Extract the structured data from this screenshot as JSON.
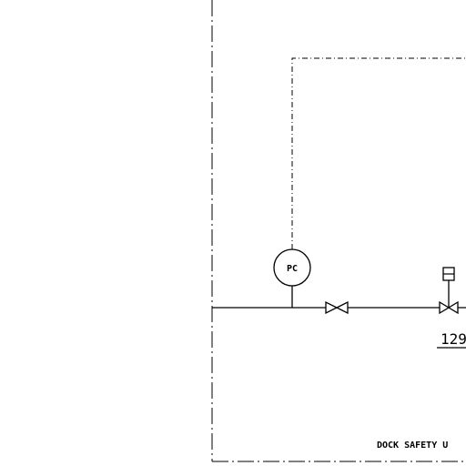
{
  "diagram": {
    "line_color": "#000000",
    "background_color": "#ffffff",
    "pressure_controller": {
      "label": "PC",
      "icon": "pressure-controller-bubble-icon"
    },
    "manual_valve": {
      "icon": "gate-valve-icon"
    },
    "control_valve": {
      "icon": "actuated-control-valve-icon",
      "tag": "129"
    },
    "boundary_label": "DOCK SAFETY U"
  }
}
